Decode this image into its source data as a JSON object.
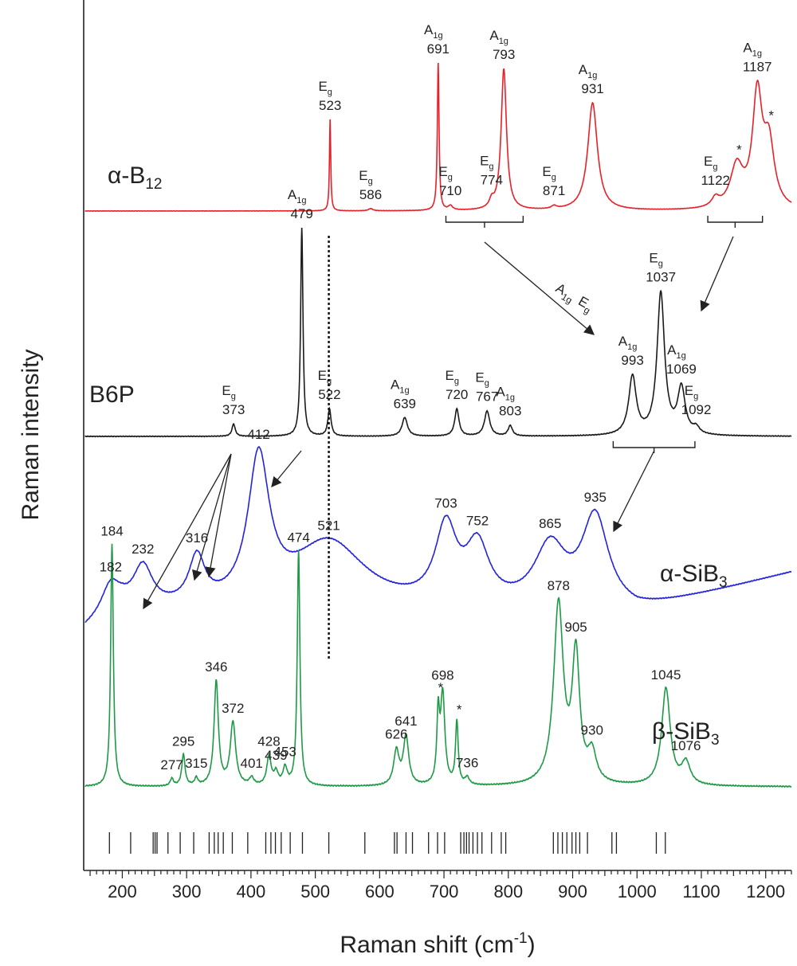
{
  "chart_data": {
    "type": "line",
    "title": "",
    "xlabel": "Raman shift (cm-1)",
    "ylabel": "Raman intensity",
    "xlim": [
      140,
      1240
    ],
    "xticks": [
      200,
      300,
      400,
      500,
      600,
      700,
      800,
      900,
      1000,
      1100,
      1200
    ],
    "yticks": "none",
    "grid": false,
    "legend": "none",
    "series": [
      {
        "name": "α-B12",
        "color": "#e8202a",
        "baseline": 0.0,
        "noise": 0.0015,
        "label_x": 135,
        "label_y": 0.18,
        "peaks": [
          {
            "x": 523,
            "h": 0.62,
            "w": 1.2,
            "annotation": "Eg",
            "value_label": "523"
          },
          {
            "x": 586,
            "h": 0.015,
            "w": 4,
            "annotation": "Eg",
            "value_label": "586"
          },
          {
            "x": 691,
            "h": 1.0,
            "w": 1.6,
            "annotation": "A1g",
            "value_label": "691"
          },
          {
            "x": 710,
            "h": 0.03,
            "w": 4,
            "annotation": "Eg",
            "value_label": "710"
          },
          {
            "x": 774,
            "h": 0.05,
            "w": 4,
            "annotation": "Eg",
            "value_label": "774"
          },
          {
            "x": 793,
            "h": 0.96,
            "w": 5,
            "annotation": "A1g",
            "value_label": "793"
          },
          {
            "x": 871,
            "h": 0.02,
            "w": 5,
            "annotation": "Eg",
            "value_label": "871"
          },
          {
            "x": 931,
            "h": 0.73,
            "w": 9,
            "annotation": "A1g",
            "value_label": "931"
          },
          {
            "x": 1122,
            "h": 0.06,
            "w": 7,
            "annotation": "Eg",
            "value_label": "1122"
          },
          {
            "x": 1155,
            "h": 0.28,
            "w": 12,
            "annotation": "*",
            "value_label": ""
          },
          {
            "x": 1187,
            "h": 0.75,
            "w": 9,
            "annotation": "A1g",
            "value_label": "1187"
          },
          {
            "x": 1205,
            "h": 0.42,
            "w": 10,
            "annotation": "*",
            "value_label": ""
          }
        ]
      },
      {
        "name": "B6P",
        "color": "#1a1a1a",
        "baseline": 0.0,
        "noise": 0.002,
        "label_x": 112,
        "label_y": 0.22,
        "peaks": [
          {
            "x": 373,
            "h": 0.06,
            "w": 3,
            "annotation": "Eg",
            "value_label": "373"
          },
          {
            "x": 479,
            "h": 1.0,
            "w": 2.2,
            "annotation": "A1g",
            "value_label": "479"
          },
          {
            "x": 522,
            "h": 0.13,
            "w": 3,
            "annotation": "Eg",
            "value_label": "522"
          },
          {
            "x": 639,
            "h": 0.09,
            "w": 5,
            "annotation": "A1g",
            "value_label": "639"
          },
          {
            "x": 720,
            "h": 0.13,
            "w": 4,
            "annotation": "Eg",
            "value_label": "720"
          },
          {
            "x": 767,
            "h": 0.12,
            "w": 5,
            "annotation": "Eg",
            "value_label": "767"
          },
          {
            "x": 803,
            "h": 0.05,
            "w": 4,
            "annotation": "A1g",
            "value_label": "803"
          },
          {
            "x": 993,
            "h": 0.28,
            "w": 7,
            "annotation": "A1g",
            "value_label": "993"
          },
          {
            "x": 1037,
            "h": 0.68,
            "w": 7,
            "annotation": "Eg",
            "value_label": "1037"
          },
          {
            "x": 1069,
            "h": 0.22,
            "w": 7,
            "annotation": "A1g",
            "value_label": "1069"
          },
          {
            "x": 1092,
            "h": 0.03,
            "w": 6,
            "annotation": "Eg",
            "value_label": "1092"
          }
        ]
      },
      {
        "name": "α-SiB3",
        "color": "#2323dd",
        "baseline": 0.0,
        "noise": 0.003,
        "label_x": 955,
        "label_y": 0.72,
        "peaks": [
          {
            "x": 182,
            "h": 0.2,
            "w": 18,
            "annotation": "",
            "value_label": "182"
          },
          {
            "x": 232,
            "h": 0.27,
            "w": 18,
            "annotation": "",
            "value_label": "232"
          },
          {
            "x": 316,
            "h": 0.31,
            "w": 15,
            "annotation": "",
            "value_label": "316"
          },
          {
            "x": 412,
            "h": 0.95,
            "w": 20,
            "annotation": "",
            "value_label": "412"
          },
          {
            "x": 521,
            "h": 0.45,
            "w": 70,
            "annotation": "",
            "value_label": "521"
          },
          {
            "x": 703,
            "h": 0.5,
            "w": 20,
            "annotation": "",
            "value_label": "703"
          },
          {
            "x": 752,
            "h": 0.38,
            "w": 22,
            "annotation": "",
            "value_label": "752"
          },
          {
            "x": 865,
            "h": 0.4,
            "w": 30,
            "annotation": "",
            "value_label": "865"
          },
          {
            "x": 935,
            "h": 0.6,
            "w": 25,
            "annotation": "",
            "value_label": "935"
          }
        ]
      },
      {
        "name": "β-SiB3",
        "color": "#1e9a47",
        "baseline": 0.0,
        "noise": 0.0025,
        "label_x": 945,
        "label_y": 0.55,
        "peaks": [
          {
            "x": 184,
            "h": 1.0,
            "w": 2.5,
            "annotation": "",
            "value_label": "184"
          },
          {
            "x": 277,
            "h": 0.03,
            "w": 3,
            "annotation": "",
            "value_label": "277"
          },
          {
            "x": 295,
            "h": 0.13,
            "w": 3,
            "annotation": "",
            "value_label": "295"
          },
          {
            "x": 315,
            "h": 0.03,
            "w": 3,
            "annotation": "",
            "value_label": "315"
          },
          {
            "x": 346,
            "h": 0.43,
            "w": 4,
            "annotation": "",
            "value_label": "346"
          },
          {
            "x": 372,
            "h": 0.26,
            "w": 5,
            "annotation": "",
            "value_label": "372"
          },
          {
            "x": 401,
            "h": 0.03,
            "w": 4,
            "annotation": "",
            "value_label": "401"
          },
          {
            "x": 428,
            "h": 0.12,
            "w": 4,
            "annotation": "",
            "value_label": "428"
          },
          {
            "x": 439,
            "h": 0.05,
            "w": 4,
            "annotation": "",
            "value_label": "439"
          },
          {
            "x": 453,
            "h": 0.07,
            "w": 4,
            "annotation": "",
            "value_label": "453"
          },
          {
            "x": 474,
            "h": 0.97,
            "w": 2.5,
            "annotation": "",
            "value_label": "474"
          },
          {
            "x": 626,
            "h": 0.14,
            "w": 5,
            "annotation": "",
            "value_label": "626"
          },
          {
            "x": 641,
            "h": 0.2,
            "w": 5,
            "annotation": "",
            "value_label": "641"
          },
          {
            "x": 691,
            "h": 0.27,
            "w": 2.5,
            "annotation": "*",
            "value_label": ""
          },
          {
            "x": 698,
            "h": 0.37,
            "w": 4,
            "annotation": "",
            "value_label": "698"
          },
          {
            "x": 720,
            "h": 0.26,
            "w": 2.5,
            "annotation": "*",
            "value_label": ""
          },
          {
            "x": 736,
            "h": 0.03,
            "w": 4,
            "annotation": "",
            "value_label": "736"
          },
          {
            "x": 878,
            "h": 0.74,
            "w": 9,
            "annotation": "",
            "value_label": "878"
          },
          {
            "x": 905,
            "h": 0.52,
            "w": 7,
            "annotation": "",
            "value_label": "905"
          },
          {
            "x": 930,
            "h": 0.12,
            "w": 8,
            "annotation": "",
            "value_label": "930"
          },
          {
            "x": 1045,
            "h": 0.4,
            "w": 8,
            "annotation": "",
            "value_label": "1045"
          },
          {
            "x": 1076,
            "h": 0.09,
            "w": 8,
            "annotation": "",
            "value_label": "1076"
          }
        ]
      }
    ],
    "reference_ticks": [
      180,
      213,
      248,
      251,
      254,
      271,
      290,
      311,
      335,
      343,
      349,
      357,
      371,
      395,
      423,
      431,
      438,
      447,
      461,
      480,
      521,
      577,
      623,
      627,
      641,
      651,
      676,
      690,
      701,
      726,
      731,
      735,
      739,
      745,
      752,
      759,
      774,
      789,
      796,
      870,
      877,
      884,
      891,
      899,
      905,
      911,
      923,
      961,
      968,
      1030,
      1044
    ],
    "dotted_line_x": 521,
    "brackets": [
      {
        "series": "α-B12",
        "from": 703,
        "to": 823
      },
      {
        "series": "α-B12",
        "from": 1110,
        "to": 1195
      },
      {
        "series": "B6P",
        "from": 963,
        "to": 1090
      }
    ],
    "arrow_text": {
      "a": "A1g",
      "b": "Eg"
    }
  }
}
